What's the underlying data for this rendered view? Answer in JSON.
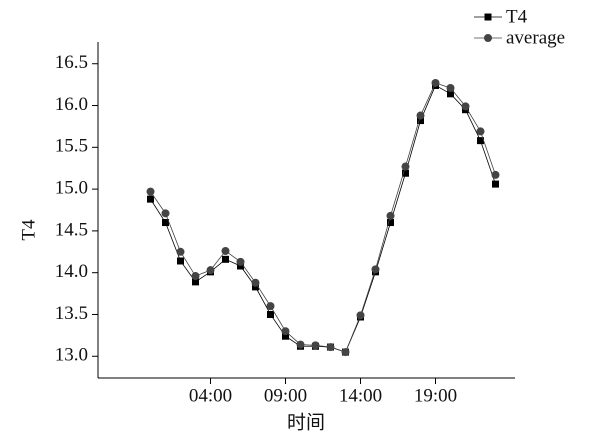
{
  "chart_data": {
    "type": "line",
    "x_label": "时间",
    "y_label": "T4",
    "x": [
      0,
      1,
      2,
      3,
      4,
      5,
      6,
      7,
      8,
      9,
      10,
      11,
      12,
      13,
      14,
      15,
      16,
      17,
      18,
      19,
      20,
      21,
      22,
      23
    ],
    "xlim": [
      -3.5,
      24.3
    ],
    "xticks": [
      {
        "value": 4,
        "label": "04:00"
      },
      {
        "value": 9,
        "label": "09:00"
      },
      {
        "value": 14,
        "label": "14:00"
      },
      {
        "value": 19,
        "label": "19:00"
      }
    ],
    "ylim": [
      12.74,
      16.76
    ],
    "yticks": [
      {
        "value": 13,
        "label": "13.0"
      },
      13.5,
      {
        "value": 14,
        "label": "14.0"
      },
      14.5,
      {
        "value": 15,
        "label": "15.0"
      },
      15.5,
      {
        "value": 16,
        "label": "16.0"
      },
      16.5
    ],
    "legend": "top-right",
    "series": [
      {
        "name": "T4",
        "color": "#000000",
        "marker": "square",
        "values": [
          14.88,
          14.6,
          14.14,
          13.89,
          14.01,
          14.16,
          14.08,
          13.83,
          13.5,
          13.24,
          13.12,
          13.12,
          13.11,
          13.05,
          13.47,
          14.01,
          14.6,
          15.19,
          15.82,
          16.24,
          16.14,
          15.95,
          15.58,
          15.06
        ]
      },
      {
        "name": "average",
        "color": "#444444",
        "marker": "circle",
        "values": [
          14.97,
          14.71,
          14.25,
          13.96,
          14.03,
          14.26,
          14.13,
          13.88,
          13.6,
          13.3,
          13.14,
          13.13,
          13.11,
          13.05,
          13.49,
          14.04,
          14.68,
          15.27,
          15.88,
          16.27,
          16.21,
          15.99,
          15.69,
          15.17
        ]
      }
    ]
  }
}
